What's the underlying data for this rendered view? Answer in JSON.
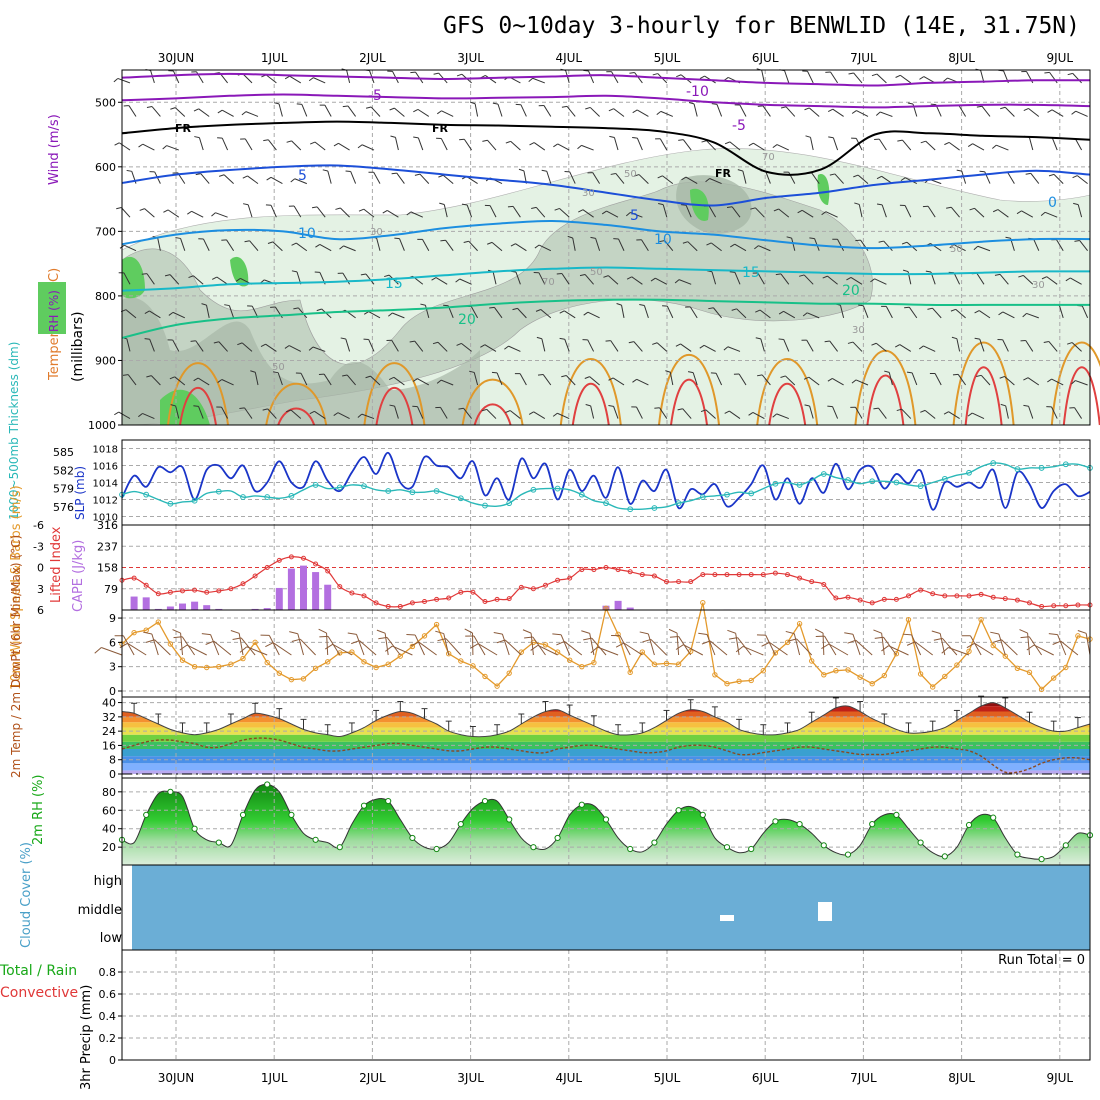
{
  "title": "GFS 0~10day 3-hourly for BENWLID (14E, 31.75N)",
  "chart_data": [
    {
      "id": "upper_air",
      "type": "contour",
      "ylabel": "(millibars)",
      "side_labels": {
        "wind": "Wind (m/s)",
        "temperature": "Temperature (°C)",
        "rh": "RH (%)"
      },
      "ylim": [
        1000,
        450
      ],
      "yticks": [
        500,
        600,
        700,
        800,
        900,
        1000
      ],
      "dates_top": [
        "30JUN",
        "1JUL",
        "2JUL",
        "3JUL",
        "4JUL",
        "5JUL",
        "6JUL",
        "7JUL",
        "8JUL",
        "9JUL"
      ],
      "freezing_label": "FR",
      "isotherm_labels": [
        "-10",
        "-5",
        "-5",
        "5",
        "5",
        "10",
        "10",
        "15",
        "15",
        "20",
        "20",
        "0"
      ],
      "rh_labels": [
        "30",
        "50",
        "70",
        "50",
        "30",
        "50",
        "30",
        "70",
        "50",
        "30"
      ],
      "isotherms": [
        {
          "t": -10,
          "color": "#8a18b8",
          "p": [
            462,
            458,
            456,
            458,
            460,
            462,
            464,
            462,
            460,
            458,
            462,
            466,
            470,
            472,
            474,
            470,
            468,
            466,
            466
          ]
        },
        {
          "t": -5,
          "color": "#8a18b8",
          "p": [
            497,
            494,
            490,
            488,
            490,
            492,
            494,
            493,
            492,
            490,
            494,
            500,
            504,
            506,
            508,
            506,
            504,
            504,
            506
          ]
        },
        {
          "t": 0,
          "color": "#000000",
          "p": [
            548,
            540,
            535,
            532,
            530,
            532,
            535,
            536,
            538,
            540,
            545,
            562,
            608,
            604,
            550,
            548,
            552,
            554,
            558
          ]
        },
        {
          "t": 5,
          "color": "#1c4fd8",
          "p": [
            625,
            612,
            605,
            600,
            598,
            604,
            612,
            620,
            628,
            640,
            652,
            660,
            648,
            640,
            628,
            620,
            612,
            606,
            612
          ]
        },
        {
          "t": 10,
          "color": "#1c8ee0",
          "p": [
            720,
            705,
            698,
            700,
            712,
            706,
            695,
            688,
            684,
            690,
            700,
            705,
            714,
            722,
            726,
            722,
            716,
            712,
            712
          ]
        },
        {
          "t": 15,
          "color": "#18b8c8",
          "p": [
            792,
            788,
            782,
            780,
            778,
            774,
            768,
            762,
            758,
            756,
            758,
            760,
            762,
            764,
            766,
            766,
            764,
            762,
            762
          ]
        },
        {
          "t": 20,
          "color": "#18c088",
          "p": [
            865,
            845,
            835,
            830,
            825,
            822,
            818,
            812,
            808,
            806,
            806,
            808,
            810,
            812,
            812,
            814,
            814,
            814,
            814
          ]
        }
      ],
      "rh_shading": [
        {
          "level": 30,
          "color": "#e4f2e4"
        },
        {
          "level": 50,
          "color": "#c4d4c4"
        },
        {
          "level": 70,
          "color": "#a8b8a8"
        },
        {
          "level": 90,
          "color": "#5fcc5f"
        }
      ],
      "boundary_layer_peaks_c": [
        35,
        30,
        35,
        31,
        36,
        37,
        36,
        38,
        40,
        40
      ]
    },
    {
      "id": "thickness_slp",
      "type": "line",
      "ylabel_left": "1000~500mb Thickness (dm)",
      "ylabel_right": "SLP (mb)",
      "left_ticks": [
        576,
        579,
        582,
        585
      ],
      "right_ticks": [
        1010,
        1012,
        1014,
        1016,
        1018
      ],
      "series": [
        {
          "name": "SLP (mb)",
          "color": "#1a35c8",
          "values": [
            1012.2,
            1014.8,
            1013.5,
            1015.8,
            1015.2,
            1015.8,
            1012.0,
            1015.5,
            1016.0,
            1014.5,
            1016.0,
            1013.0,
            1014.0,
            1016.5,
            1014.0,
            1013.5,
            1016.5,
            1014.2,
            1013.0,
            1015.2,
            1017.0,
            1015.0,
            1017.5,
            1014.0,
            1013.5,
            1017.0,
            1016.0,
            1015.8,
            1014.5,
            1016.5,
            1012.5,
            1014.5,
            1012.0,
            1016.8,
            1014.5,
            1016.2,
            1012.0,
            1015.5,
            1013.0,
            1014.8,
            1012.2,
            1015.8,
            1011.5,
            1014.2,
            1013.0,
            1015.5,
            1011.0,
            1013.2,
            1012.6,
            1013.8,
            1011.2,
            1012.2,
            1013.8,
            1016.0,
            1012.0,
            1014.5,
            1011.5,
            1014.5,
            1012.8,
            1016.2,
            1013.2,
            1015.5,
            1015.8,
            1013.3,
            1015.0,
            1013.9,
            1015.4,
            1010.8,
            1014.0,
            1013.5,
            1014.0,
            1013.4,
            1015.5,
            1011.0,
            1015.2,
            1013.8,
            1011.0,
            1013.0,
            1013.8,
            1012.4,
            1012.9
          ]
        },
        {
          "name": "Thickness (dm)",
          "color": "#2ab8b8",
          "values": [
            578.0,
            578.5,
            578.0,
            577.2,
            576.5,
            576.8,
            577.0,
            578.2,
            578.5,
            578.6,
            577.6,
            577.8,
            577.6,
            577.4,
            577.8,
            578.8,
            579.6,
            579.0,
            579.2,
            579.6,
            579.4,
            578.8,
            578.6,
            578.8,
            578.4,
            578.4,
            578.6,
            578.0,
            577.4,
            576.6,
            576.2,
            576.1,
            576.6,
            578.0,
            578.8,
            579.0,
            579.0,
            578.8,
            578.0,
            577.0,
            576.6,
            575.8,
            575.6,
            575.6,
            575.8,
            576.0,
            576.6,
            577.0,
            577.6,
            577.8,
            578.0,
            578.4,
            578.2,
            579.0,
            579.8,
            580.0,
            579.6,
            580.4,
            581.4,
            580.8,
            580.4,
            579.8,
            580.2,
            580.2,
            580.0,
            579.6,
            579.4,
            580.0,
            580.6,
            581.2,
            581.6,
            582.6,
            583.2,
            583.0,
            582.2,
            582.4,
            582.4,
            582.6,
            583.0,
            583.0,
            582.4
          ]
        }
      ]
    },
    {
      "id": "cape_li",
      "type": "bar+line",
      "ylabel_left": "Lifted Index",
      "ylabel_right": "CAPE (J/kg)",
      "li_ticks": [
        "-6",
        "-3",
        "0",
        "3",
        "6"
      ],
      "cape_ticks": [
        "316",
        "237",
        "158",
        "79"
      ],
      "series": [
        {
          "name": "CAPE (J/kg)",
          "color": "#b36fe0",
          "values": [
            0,
            50,
            47,
            4,
            13,
            24,
            31,
            18,
            4,
            0,
            0,
            4,
            7,
            82,
            154,
            165,
            141,
            94,
            0,
            0,
            0,
            0,
            0,
            0,
            0,
            0,
            0,
            0,
            0,
            0,
            0,
            0,
            0,
            0,
            0,
            0,
            0,
            0,
            0,
            0,
            16,
            34,
            9,
            0,
            0,
            0,
            0,
            0,
            0,
            0,
            2,
            0,
            0,
            0,
            0,
            0,
            0,
            0,
            0,
            0,
            0,
            0,
            0,
            0,
            0,
            0,
            0,
            0,
            0,
            0,
            0,
            0,
            0,
            0,
            0,
            0,
            0,
            0,
            0,
            0,
            0
          ]
        },
        {
          "name": "Lifted Index",
          "color": "#e03838",
          "values": [
            1.8,
            1.5,
            2.5,
            3.7,
            3.5,
            3.3,
            3.2,
            3.5,
            3.3,
            3.0,
            2.3,
            1.2,
            0.0,
            -1.0,
            -1.5,
            -1.3,
            -0.5,
            0.5,
            2.7,
            3.6,
            4.0,
            5.0,
            5.5,
            5.5,
            5.0,
            4.8,
            4.5,
            4.3,
            3.5,
            3.5,
            4.8,
            4.5,
            4.4,
            2.8,
            3.0,
            2.5,
            1.8,
            1.5,
            0.3,
            0.3,
            0.0,
            0.3,
            0.6,
            1.0,
            1.2,
            2.0,
            2.0,
            2.0,
            1.0,
            1.0,
            1.0,
            1.0,
            1.0,
            1.0,
            0.8,
            1.0,
            1.5,
            2.0,
            2.4,
            4.3,
            4.2,
            4.6,
            5.0,
            4.5,
            4.5,
            4.0,
            3.2,
            3.7,
            4.0,
            4.0,
            4.0,
            3.8,
            4.2,
            4.4,
            4.6,
            5.0,
            5.5,
            5.4,
            5.4,
            5.3,
            5.3
          ]
        }
      ]
    },
    {
      "id": "wind10m",
      "type": "line",
      "ylabel": "10m Wind Speed & Barbs (m/s)",
      "yticks": [
        0,
        3,
        6,
        9
      ],
      "series": [
        {
          "name": "10m wind speed",
          "color": "#e49a2c",
          "values": [
            5.8,
            7.2,
            7.5,
            8.5,
            5.8,
            3.8,
            3.0,
            2.9,
            3.0,
            3.3,
            4.0,
            6.0,
            3.5,
            2.2,
            1.4,
            1.5,
            2.8,
            3.6,
            4.7,
            4.8,
            3.6,
            2.9,
            3.3,
            4.3,
            5.5,
            6.8,
            8.2,
            4.6,
            3.7,
            3.1,
            1.8,
            0.6,
            2.2,
            4.8,
            6.0,
            5.7,
            4.8,
            3.8,
            3.0,
            3.5,
            10.2,
            7.0,
            2.3,
            4.8,
            3.3,
            3.4,
            3.3,
            4.9,
            10.9,
            2.0,
            0.9,
            1.2,
            1.3,
            2.5,
            4.7,
            6.0,
            8.3,
            3.7,
            2.0,
            2.5,
            2.6,
            1.7,
            0.9,
            1.9,
            4.6,
            8.8,
            2.1,
            0.5,
            1.8,
            3.2,
            4.9,
            8.8,
            5.6,
            4.3,
            2.8,
            2.3,
            0.2,
            1.6,
            2.9,
            6.8,
            6.4
          ]
        }
      ]
    },
    {
      "id": "temp2m",
      "type": "area",
      "ylabel": "2m Temp / 2m DewPt (6hr Min/Max) (°C)",
      "yticks": [
        0,
        8,
        16,
        24,
        32,
        40
      ],
      "series": [
        {
          "name": "2m temperature",
          "values": [
            35,
            34,
            31,
            28,
            25,
            23,
            22,
            23,
            25,
            28,
            31,
            34,
            33,
            31,
            28,
            25,
            23,
            22,
            21,
            23,
            26,
            30,
            33,
            35,
            34,
            31,
            28,
            24,
            22,
            21,
            21,
            22,
            24,
            28,
            32,
            35,
            36,
            33,
            30,
            27,
            24,
            22,
            22,
            23,
            26,
            30,
            34,
            36,
            35,
            32,
            29,
            25,
            23,
            22,
            22,
            23,
            25,
            29,
            33,
            37,
            38,
            35,
            31,
            28,
            25,
            23,
            23,
            24,
            26,
            30,
            34,
            38,
            40,
            37,
            33,
            29,
            26,
            24,
            24,
            26,
            28
          ]
        },
        {
          "name": "2m dewpoint",
          "color": "#8a4a20",
          "values": [
            14,
            16,
            18,
            19,
            19,
            18,
            17,
            15,
            15,
            17,
            19,
            20,
            20,
            19,
            17,
            15,
            14,
            13,
            13,
            14,
            15,
            16,
            17,
            17,
            16,
            15,
            14,
            13,
            13,
            14,
            15,
            15,
            14,
            13,
            12,
            12,
            14,
            15,
            16,
            16,
            15,
            14,
            13,
            12,
            12,
            13,
            15,
            16,
            16,
            15,
            13,
            11,
            11,
            12,
            13,
            14,
            15,
            15,
            14,
            13,
            12,
            11,
            11,
            11,
            12,
            13,
            14,
            15,
            15,
            14,
            13,
            10,
            5,
            1,
            1,
            3,
            6,
            8,
            9,
            9,
            8
          ]
        }
      ]
    },
    {
      "id": "rh2m",
      "type": "area",
      "ylabel": "2m RH (%)",
      "yticks": [
        20,
        40,
        60,
        80
      ],
      "series": [
        {
          "name": "2m RH",
          "color": "#18a818",
          "values": [
            28,
            25,
            55,
            78,
            80,
            75,
            40,
            28,
            25,
            22,
            55,
            82,
            88,
            80,
            55,
            35,
            28,
            25,
            20,
            45,
            65,
            72,
            70,
            50,
            30,
            20,
            18,
            25,
            45,
            62,
            70,
            70,
            50,
            30,
            20,
            18,
            30,
            55,
            66,
            65,
            50,
            30,
            18,
            15,
            25,
            45,
            60,
            64,
            55,
            30,
            20,
            14,
            18,
            35,
            48,
            50,
            45,
            35,
            22,
            14,
            12,
            22,
            45,
            55,
            55,
            40,
            25,
            14,
            10,
            20,
            44,
            55,
            52,
            30,
            12,
            8,
            7,
            10,
            22,
            35,
            33
          ]
        }
      ]
    },
    {
      "id": "cloud",
      "type": "heatmap",
      "ylabel": "Cloud Cover (%)",
      "rows": [
        "high",
        "middle",
        "low"
      ],
      "fill_color": "#6baed6",
      "gap_color": "#ffffff"
    },
    {
      "id": "precip",
      "type": "bar",
      "ylabel": "3hr Precip (mm)",
      "legend": [
        "Total / Rain",
        "Convective"
      ],
      "yticks": [
        "0",
        "0.2",
        "0.4",
        "0.6",
        "0.8"
      ],
      "ylim": [
        0,
        1
      ],
      "run_total": "Run Total = 0",
      "dates_bottom": [
        "30JUN",
        "1JUL",
        "2JUL",
        "3JUL",
        "4JUL",
        "5JUL",
        "6JUL",
        "7JUL",
        "8JUL",
        "9JUL"
      ],
      "values": []
    }
  ]
}
